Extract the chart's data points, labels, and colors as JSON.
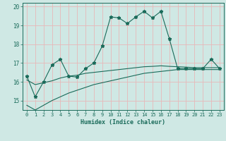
{
  "title": "",
  "xlabel": "Humidex (Indice chaleur)",
  "ylabel": "",
  "bg_color": "#cfe8e4",
  "grid_color": "#e8b8b8",
  "line_color": "#1a6b5a",
  "x": [
    0,
    1,
    2,
    3,
    4,
    5,
    6,
    7,
    8,
    9,
    10,
    11,
    12,
    13,
    14,
    15,
    16,
    17,
    18,
    19,
    20,
    21,
    22,
    23
  ],
  "y_main": [
    16.3,
    15.2,
    16.0,
    16.9,
    17.2,
    16.3,
    16.25,
    16.7,
    17.0,
    17.9,
    19.45,
    19.4,
    19.1,
    19.45,
    19.75,
    19.4,
    19.75,
    18.3,
    16.7,
    16.7,
    16.7,
    16.7,
    17.2,
    16.7
  ],
  "y_low": [
    14.75,
    14.5,
    14.75,
    15.0,
    15.2,
    15.4,
    15.55,
    15.7,
    15.85,
    15.95,
    16.05,
    16.15,
    16.25,
    16.35,
    16.45,
    16.5,
    16.55,
    16.6,
    16.65,
    16.65,
    16.65,
    16.65,
    16.65,
    16.65
  ],
  "y_high": [
    16.1,
    15.85,
    15.95,
    16.05,
    16.2,
    16.3,
    16.35,
    16.45,
    16.5,
    16.55,
    16.6,
    16.65,
    16.7,
    16.75,
    16.8,
    16.82,
    16.85,
    16.82,
    16.8,
    16.78,
    16.75,
    16.75,
    16.75,
    16.75
  ],
  "ylim": [
    14.5,
    20.2
  ],
  "xlim": [
    -0.5,
    23.5
  ],
  "yticks": [
    15,
    16,
    17,
    18,
    19,
    20
  ],
  "xticks": [
    0,
    1,
    2,
    3,
    4,
    5,
    6,
    7,
    8,
    9,
    10,
    11,
    12,
    13,
    14,
    15,
    16,
    17,
    18,
    19,
    20,
    21,
    22,
    23
  ]
}
